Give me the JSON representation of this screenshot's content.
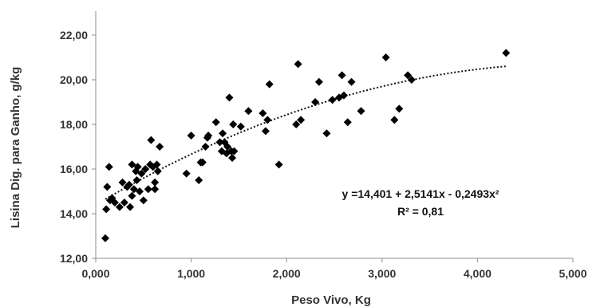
{
  "chart_data": {
    "type": "scatter",
    "xlabel": "Peso Vivo, Kg",
    "ylabel": "Lisina Dig. para Ganho, g/kg",
    "xlim": [
      0,
      5
    ],
    "ylim": [
      12,
      22
    ],
    "x_ticks": [
      "0,000",
      "1,000",
      "2,000",
      "3,000",
      "4,000",
      "5,000"
    ],
    "y_ticks": [
      "12,00",
      "14,00",
      "16,00",
      "18,00",
      "20,00",
      "22,00"
    ],
    "grid": false,
    "marker": "diamond",
    "marker_color": "#000000",
    "points": [
      [
        0.1,
        12.9
      ],
      [
        0.11,
        14.2
      ],
      [
        0.12,
        15.2
      ],
      [
        0.14,
        16.1
      ],
      [
        0.15,
        14.6
      ],
      [
        0.17,
        14.7
      ],
      [
        0.2,
        14.5
      ],
      [
        0.25,
        14.3
      ],
      [
        0.28,
        15.4
      ],
      [
        0.3,
        14.5
      ],
      [
        0.33,
        15.2
      ],
      [
        0.35,
        15.3
      ],
      [
        0.36,
        14.3
      ],
      [
        0.38,
        14.8
      ],
      [
        0.38,
        16.2
      ],
      [
        0.4,
        15.1
      ],
      [
        0.42,
        15.9
      ],
      [
        0.43,
        15.5
      ],
      [
        0.44,
        16.1
      ],
      [
        0.46,
        15.0
      ],
      [
        0.48,
        15.8
      ],
      [
        0.5,
        14.6
      ],
      [
        0.52,
        16.0
      ],
      [
        0.55,
        15.1
      ],
      [
        0.57,
        16.2
      ],
      [
        0.58,
        17.3
      ],
      [
        0.6,
        16.1
      ],
      [
        0.62,
        15.4
      ],
      [
        0.62,
        15.1
      ],
      [
        0.64,
        16.2
      ],
      [
        0.65,
        15.9
      ],
      [
        0.67,
        17.0
      ],
      [
        0.95,
        15.8
      ],
      [
        1.0,
        17.5
      ],
      [
        1.08,
        15.5
      ],
      [
        1.1,
        16.3
      ],
      [
        1.12,
        16.3
      ],
      [
        1.15,
        17.0
      ],
      [
        1.17,
        17.4
      ],
      [
        1.18,
        17.5
      ],
      [
        1.26,
        18.1
      ],
      [
        1.3,
        17.2
      ],
      [
        1.32,
        16.8
      ],
      [
        1.33,
        17.6
      ],
      [
        1.35,
        17.2
      ],
      [
        1.37,
        16.7
      ],
      [
        1.38,
        17.0
      ],
      [
        1.4,
        19.2
      ],
      [
        1.42,
        16.8
      ],
      [
        1.43,
        16.5
      ],
      [
        1.44,
        18.0
      ],
      [
        1.45,
        16.8
      ],
      [
        1.52,
        17.9
      ],
      [
        1.6,
        18.6
      ],
      [
        1.75,
        18.5
      ],
      [
        1.78,
        17.7
      ],
      [
        1.8,
        18.2
      ],
      [
        1.82,
        19.8
      ],
      [
        1.92,
        16.2
      ],
      [
        2.1,
        18.0
      ],
      [
        2.12,
        20.7
      ],
      [
        2.15,
        18.2
      ],
      [
        2.3,
        19.0
      ],
      [
        2.34,
        19.9
      ],
      [
        2.42,
        17.6
      ],
      [
        2.48,
        19.1
      ],
      [
        2.55,
        19.2
      ],
      [
        2.58,
        20.2
      ],
      [
        2.6,
        19.3
      ],
      [
        2.64,
        18.1
      ],
      [
        2.68,
        19.9
      ],
      [
        2.78,
        18.6
      ],
      [
        3.04,
        21.0
      ],
      [
        3.13,
        18.2
      ],
      [
        3.18,
        18.7
      ],
      [
        3.27,
        20.2
      ],
      [
        3.31,
        20.0
      ],
      [
        4.3,
        21.2
      ]
    ],
    "trendline": {
      "style": "dotted",
      "equation": "y =14,401 + 2,5141x - 0,2493x²",
      "r2": "R² = 0,81",
      "intercept": 14.401,
      "linear": 2.5141,
      "quadratic": -0.2493,
      "x_range": [
        0.1,
        4.3
      ]
    }
  }
}
